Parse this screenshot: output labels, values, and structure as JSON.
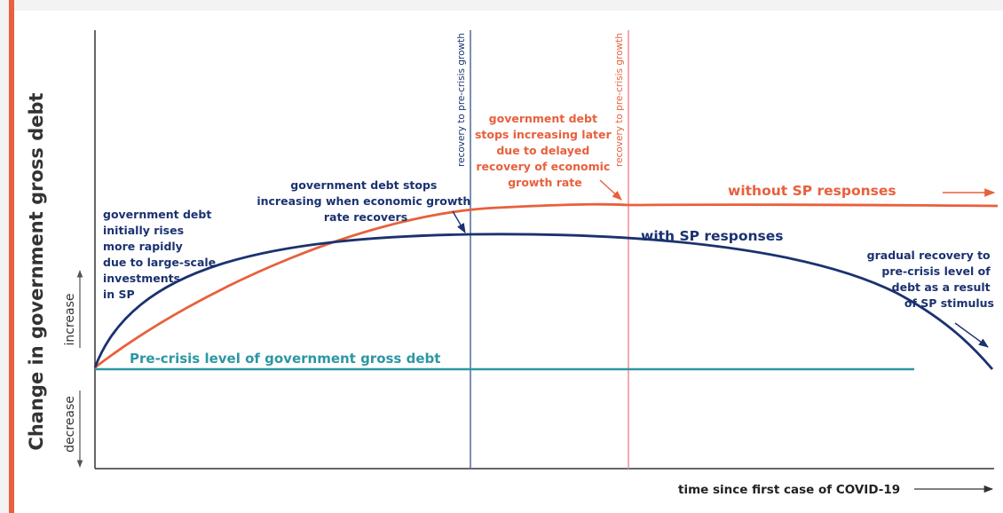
{
  "diagram": {
    "y_axis_title": "Change in government gross debt",
    "y_up_label": "increase",
    "y_down_label": "decrease",
    "x_axis_title": "time since first case of COVID-19",
    "baseline_label": "Pre-crisis level of government gross debt",
    "series": {
      "without_sp": "without SP responses",
      "with_sp": "with SP responses"
    },
    "vlines": {
      "with_sp": "recovery to pre-crisis growth",
      "without_sp": "recovery to pre-crisis growth"
    },
    "annotations": {
      "initial_rise": [
        "government debt",
        "initially rises",
        "more rapidly",
        "due to large-scale",
        "investments",
        "in SP"
      ],
      "stops_increasing": [
        "government debt stops",
        "increasing when economic growth",
        "rate recovers"
      ],
      "stops_later": [
        "government debt",
        "stops increasing later",
        "due to delayed",
        "recovery of economic",
        "growth rate"
      ],
      "gradual_recovery": [
        "gradual recovery to",
        "pre-crisis level of",
        "debt as a result",
        "of SP stimulus"
      ]
    },
    "colors": {
      "navy": "#1b3270",
      "orange": "#e8603c",
      "teal": "#2d97a3",
      "steel": "#5a74a0",
      "pink": "#f2959a",
      "axis": "#333333"
    }
  }
}
